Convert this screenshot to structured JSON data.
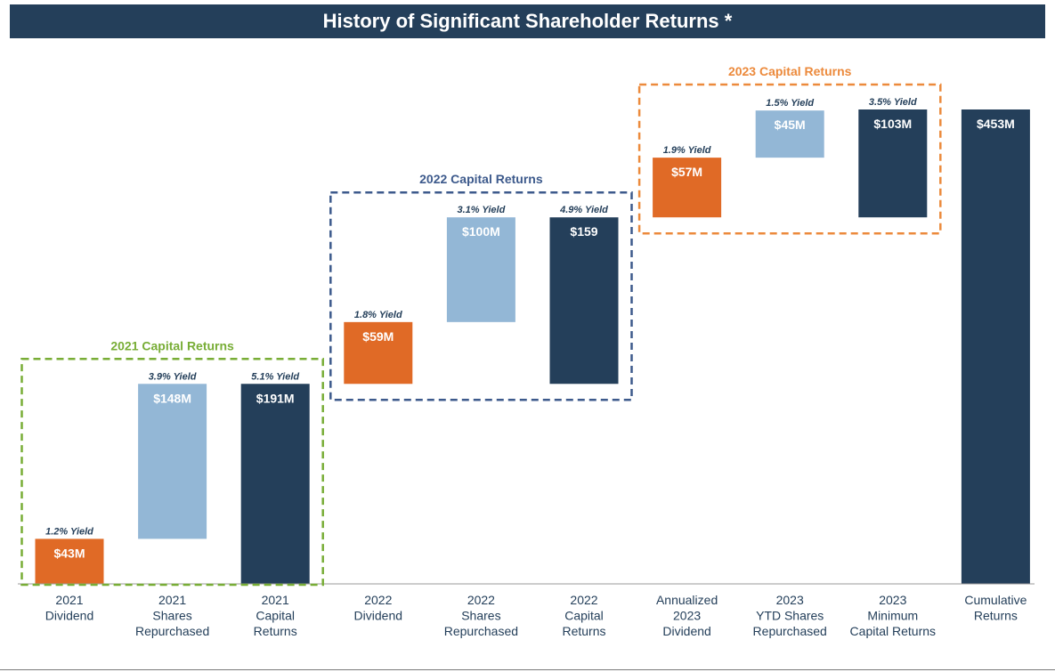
{
  "title": "History of Significant Shareholder Returns *",
  "colors": {
    "dividend": "#e06a26",
    "shares": "#93b7d6",
    "total": "#243f5a",
    "group_2021": "#78ad36",
    "group_2022": "#3d5a8c",
    "group_2023": "#ec8a3c",
    "header": "#243f5a"
  },
  "chart_data": {
    "type": "bar",
    "subtype": "waterfall",
    "unit": "$M",
    "categories": [
      [
        "2021",
        "Dividend"
      ],
      [
        "2021",
        "Shares",
        "Repurchased"
      ],
      [
        "2021",
        "Capital",
        "Returns"
      ],
      [
        "2022",
        "Dividend"
      ],
      [
        "2022",
        "Shares",
        "Repurchased"
      ],
      [
        "2022",
        "Capital",
        "Returns"
      ],
      [
        "Annualized",
        "2023",
        "Dividend"
      ],
      [
        "2023",
        "YTD Shares",
        "Repurchased"
      ],
      [
        "2023",
        "Minimum",
        "Capital Returns"
      ],
      [
        "Cumulative",
        "Returns"
      ]
    ],
    "bars": [
      {
        "base": 0,
        "value": 43,
        "label": "$43M",
        "yield": "1.2% Yield",
        "kind": "dividend"
      },
      {
        "base": 43,
        "value": 148,
        "label": "$148M",
        "yield": "3.9% Yield",
        "kind": "shares"
      },
      {
        "base": 0,
        "value": 191,
        "label": "$191M",
        "yield": "5.1% Yield",
        "kind": "total"
      },
      {
        "base": 191,
        "value": 59,
        "label": "$59M",
        "yield": "1.8% Yield",
        "kind": "dividend"
      },
      {
        "base": 250,
        "value": 100,
        "label": "$100M",
        "yield": "3.1% Yield",
        "kind": "shares"
      },
      {
        "base": 191,
        "value": 159,
        "label": "$159",
        "yield": "4.9% Yield",
        "kind": "total"
      },
      {
        "base": 350,
        "value": 57,
        "label": "$57M",
        "yield": "1.9% Yield",
        "kind": "dividend"
      },
      {
        "base": 407,
        "value": 45,
        "label": "$45M",
        "yield": "1.5% Yield",
        "kind": "shares"
      },
      {
        "base": 350,
        "value": 103,
        "label": "$103M",
        "yield": "3.5% Yield",
        "kind": "total"
      },
      {
        "base": 0,
        "value": 453,
        "label": "$453M",
        "yield": "",
        "kind": "total"
      }
    ],
    "groups": [
      {
        "label": "2021 Capital Returns",
        "first": 0,
        "last": 2,
        "color_key": "group_2021"
      },
      {
        "label": "2022 Capital Returns",
        "first": 3,
        "last": 5,
        "color_key": "group_2022"
      },
      {
        "label": "2023 Capital Returns",
        "first": 6,
        "last": 8,
        "color_key": "group_2023"
      }
    ],
    "ylim": [
      0,
      453
    ],
    "grid": false,
    "legend": "none"
  }
}
